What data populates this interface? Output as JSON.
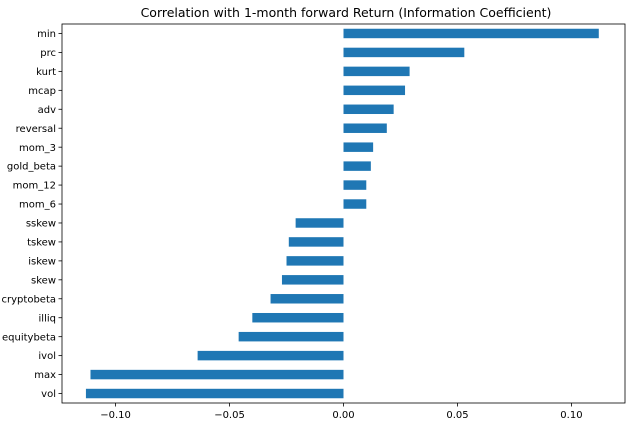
{
  "chart_data": {
    "type": "bar",
    "orientation": "horizontal",
    "title": "Correlation with 1-month forward Return (Information Coefficient)",
    "xlabel": "",
    "ylabel": "",
    "categories": [
      "min",
      "prc",
      "kurt",
      "mcap",
      "adv",
      "reversal",
      "mom_3",
      "gold_beta",
      "mom_12",
      "mom_6",
      "sskew",
      "tskew",
      "iskew",
      "skew",
      "cryptobeta",
      "illiq",
      "equitybeta",
      "ivol",
      "max",
      "vol"
    ],
    "values": [
      0.112,
      0.053,
      0.029,
      0.027,
      0.022,
      0.019,
      0.013,
      0.012,
      0.01,
      0.01,
      -0.021,
      -0.024,
      -0.025,
      -0.027,
      -0.032,
      -0.04,
      -0.046,
      -0.064,
      -0.111,
      -0.113
    ],
    "xlim": [
      -0.1235,
      0.1235
    ],
    "xticks": [
      -0.1,
      -0.05,
      0.0,
      0.05,
      0.1
    ],
    "xtick_labels": [
      "−0.10",
      "−0.05",
      "0.00",
      "0.05",
      "0.10"
    ],
    "grid": false,
    "legend": "none",
    "bar_color": "#1f77b4"
  }
}
